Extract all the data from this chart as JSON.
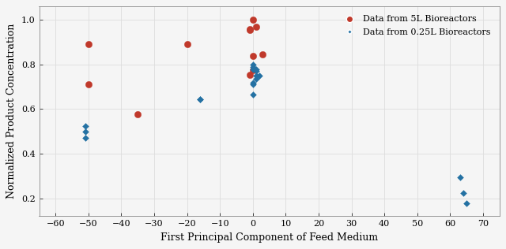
{
  "title": "",
  "xlabel": "First Principal Component of Feed Medium",
  "ylabel": "Normalized Product Concentration",
  "xlim": [
    -65,
    75
  ],
  "ylim": [
    0.12,
    1.06
  ],
  "xticks": [
    -60,
    -50,
    -40,
    -30,
    -20,
    -10,
    0,
    10,
    20,
    30,
    40,
    50,
    60,
    70
  ],
  "yticks": [
    0.2,
    0.4,
    0.6,
    0.8,
    1.0
  ],
  "red_x": [
    -50,
    -50,
    -20,
    -35,
    -1,
    -1,
    0,
    1,
    0,
    3,
    0,
    -1
  ],
  "red_y": [
    0.89,
    0.71,
    0.89,
    0.578,
    0.96,
    0.955,
    1.0,
    0.97,
    0.84,
    0.845,
    0.775,
    0.755
  ],
  "blue_x": [
    -51,
    -51,
    -51,
    -16,
    -16,
    0,
    0,
    0,
    1,
    1,
    1,
    0,
    0,
    0,
    2,
    1,
    63,
    64,
    65
  ],
  "blue_y": [
    0.525,
    0.5,
    0.47,
    0.645,
    0.643,
    0.8,
    0.79,
    0.78,
    0.77,
    0.75,
    0.735,
    0.72,
    0.71,
    0.667,
    0.75,
    0.78,
    0.295,
    0.222,
    0.178
  ],
  "red_color": "#c0392b",
  "blue_color": "#2471a3",
  "bg_color": "#f5f5f5",
  "grid_color": "#dddddd",
  "legend_label_red": "Data from 5L Bioreactors",
  "legend_label_blue": "Data from 0.25L Bioreactors",
  "marker_size_red": 6,
  "marker_size_blue": 4
}
